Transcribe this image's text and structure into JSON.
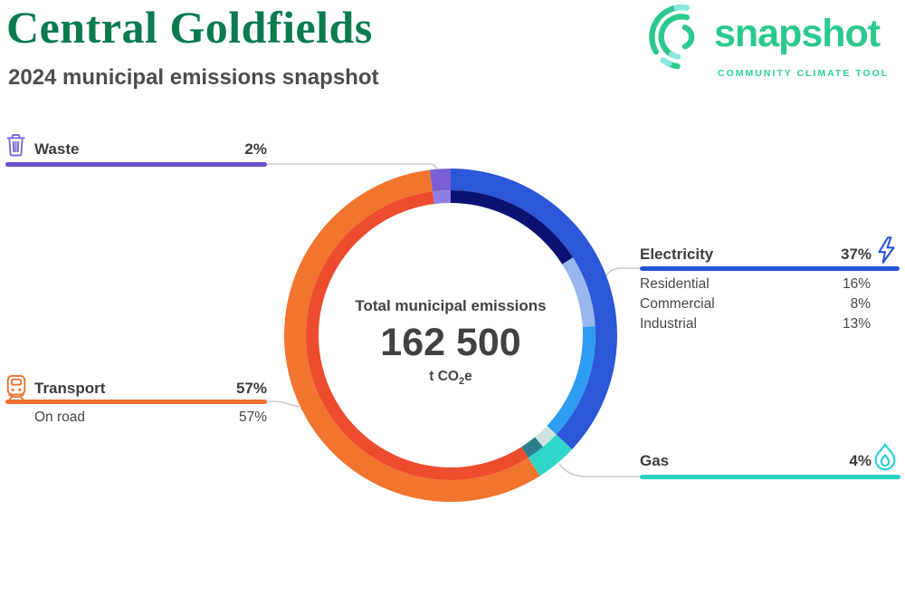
{
  "header": {
    "title": "Central Goldfields",
    "subtitle": "2024 municipal emissions snapshot"
  },
  "logo": {
    "wordmark": "snapshot",
    "tagline": "COMMUNITY CLIMATE TOOL"
  },
  "colors": {
    "title_green": "#0b7b4f",
    "logo_green": "#2cc98e",
    "logo_teal": "#8ce8e2",
    "tagline_green": "#2bd2a2"
  },
  "donut_center": {
    "label": "Total municipal emissions",
    "value": "162 500",
    "unit_pre": "t CO",
    "unit_sub": "2",
    "unit_post": "e"
  },
  "chart_data": {
    "type": "donut",
    "title": "Total municipal emissions",
    "total_value": 162500,
    "total_label": "162 500",
    "unit": "t CO2e",
    "start": "top",
    "direction": "clockwise",
    "sectors": [
      {
        "label": "Electricity",
        "pct": 37,
        "pct_label": "37%",
        "color": "#2b57d8",
        "line_color": "#2456d6",
        "icon": "lightning-bolt",
        "icon_color": "#2956d8",
        "subsectors": [
          {
            "label": "Residential",
            "pct": 16,
            "pct_label": "16%",
            "color": "#0a1372"
          },
          {
            "label": "Commercial",
            "pct": 8,
            "pct_label": "8%",
            "color": "#97b7ee"
          },
          {
            "label": "Industrial",
            "pct": 13,
            "pct_label": "13%",
            "color": "#2e9df1"
          }
        ]
      },
      {
        "label": "Gas",
        "pct": 4,
        "pct_label": "4%",
        "color": "#2fd6c9",
        "line_color": "#2bd4c7",
        "icon": "flame",
        "icon_color": "#27cdd6",
        "subsectors": [
          {
            "pct": 2,
            "color": "#cfe4e0"
          },
          {
            "pct": 2,
            "color": "#2b7f8d"
          }
        ]
      },
      {
        "label": "Transport",
        "pct": 57,
        "pct_label": "57%",
        "color": "#f1742f",
        "line_color": "#ed7031",
        "icon": "train",
        "icon_color": "#ed7031",
        "subsectors": [
          {
            "label": "On road",
            "pct": 57,
            "pct_label": "57%",
            "color": "#ee4c2e"
          }
        ]
      },
      {
        "label": "Waste",
        "pct": 2,
        "pct_label": "2%",
        "color": "#7a60d4",
        "line_color": "#6b4fc8",
        "icon": "trash",
        "icon_color": "#7d6ad8",
        "subsectors": [
          {
            "pct": 2,
            "color": "#8f7de2"
          }
        ]
      }
    ]
  }
}
